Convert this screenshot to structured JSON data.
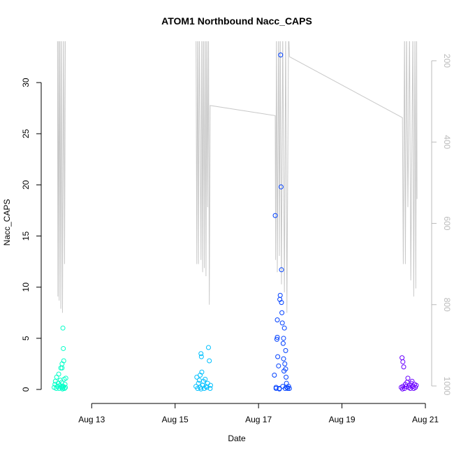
{
  "chart_data": {
    "type": "scatter",
    "title": "ATOM1 Northbound Nacc_CAPS",
    "x_label": "Date",
    "y_label": "Nacc_CAPS",
    "xlim": [
      11.79,
      21.15
    ],
    "xticks": [
      {
        "value": 13,
        "label": "Aug 13"
      },
      {
        "value": 15,
        "label": "Aug 15"
      },
      {
        "value": 17,
        "label": "Aug 17"
      },
      {
        "value": 19,
        "label": "Aug 19"
      },
      {
        "value": 21,
        "label": "Aug 21"
      }
    ],
    "ylim": [
      -1.37,
      34.04
    ],
    "yticks": [
      0,
      5,
      10,
      15,
      20,
      25,
      30
    ],
    "y2lim": [
      1043,
      152
    ],
    "y2ticks": [
      200,
      400,
      600,
      800,
      1000
    ],
    "series": [
      {
        "color": "#00ffc8",
        "x": [
          12.1,
          12.12,
          12.13,
          12.15,
          12.16,
          12.18,
          12.2,
          12.21,
          12.22,
          12.24,
          12.25,
          12.26,
          12.27,
          12.28,
          12.29,
          12.3,
          12.31,
          12.32,
          12.33,
          12.34,
          12.35,
          12.36,
          12.37,
          12.38,
          12.3,
          12.31,
          12.29,
          12.32
        ],
        "values": [
          0.2,
          0.5,
          0.8,
          0.1,
          1.2,
          0.3,
          0.6,
          1.5,
          0.1,
          0.4,
          0.9,
          2.1,
          0.2,
          0.7,
          2.5,
          0.3,
          6.0,
          4.0,
          2.8,
          1.0,
          0.1,
          0.5,
          0.2,
          1.1,
          0.05,
          0.15,
          2.1,
          0.3
        ]
      },
      {
        "color": "#00c0ff",
        "x": [
          15.5,
          15.52,
          15.54,
          15.56,
          15.58,
          15.6,
          15.62,
          15.63,
          15.64,
          15.66,
          15.68,
          15.7,
          15.72,
          15.74,
          15.76,
          15.78,
          15.8,
          15.82,
          15.84,
          15.85,
          15.62,
          15.6
        ],
        "values": [
          0.3,
          1.2,
          0.1,
          0.6,
          0.9,
          0.2,
          3.5,
          3.2,
          1.7,
          0.4,
          0.8,
          0.1,
          1.0,
          0.3,
          0.2,
          0.6,
          4.1,
          2.8,
          0.1,
          0.4,
          0.05,
          1.4
        ]
      },
      {
        "color": "#0040ff",
        "x": [
          17.38,
          17.4,
          17.42,
          17.44,
          17.45,
          17.46,
          17.48,
          17.5,
          17.51,
          17.52,
          17.53,
          17.54,
          17.55,
          17.56,
          17.57,
          17.58,
          17.59,
          17.6,
          17.61,
          17.62,
          17.63,
          17.64,
          17.65,
          17.66,
          17.67,
          17.68,
          17.7,
          17.72,
          17.74,
          17.5,
          17.55,
          17.45,
          17.6,
          17.65,
          17.42
        ],
        "values": [
          1.4,
          17.0,
          0.2,
          4.9,
          5.1,
          3.2,
          2.3,
          0.1,
          8.8,
          9.2,
          32.7,
          19.8,
          11.7,
          7.5,
          6.5,
          0.3,
          4.5,
          3.0,
          1.8,
          6.0,
          2.5,
          0.1,
          3.8,
          1.2,
          0.6,
          0.2,
          0.1,
          0.3,
          0.1,
          0.05,
          8.5,
          6.8,
          5.0,
          2.0,
          0.1
        ]
      },
      {
        "color": "#6a00ff",
        "x": [
          20.42,
          20.44,
          20.46,
          20.48,
          20.5,
          20.52,
          20.54,
          20.56,
          20.58,
          20.6,
          20.62,
          20.64,
          20.66,
          20.68,
          20.7,
          20.72,
          20.74,
          20.76,
          20.78,
          20.45,
          20.46
        ],
        "values": [
          0.2,
          3.1,
          2.7,
          2.2,
          0.1,
          0.5,
          0.3,
          0.7,
          1.1,
          0.2,
          0.4,
          0.1,
          0.6,
          0.8,
          0.3,
          0.1,
          0.5,
          0.2,
          0.4,
          0.05,
          0.3
        ]
      },
      {
        "type": "line",
        "axis": "y2",
        "color": "#c8c8c8",
        "x": [
          12.18,
          12.19,
          12.21,
          12.22,
          12.24,
          12.26,
          12.28,
          12.3,
          12.33,
          12.35,
          12.37,
          15.5,
          15.52,
          15.54,
          15.56,
          15.58,
          15.62,
          15.64,
          15.66,
          15.68,
          15.7,
          15.72,
          15.74,
          15.76,
          15.78,
          15.8,
          15.82,
          15.84,
          17.4,
          17.41,
          17.43,
          17.45,
          17.48,
          17.5,
          17.52,
          17.55,
          17.58,
          17.62,
          17.65,
          17.68,
          17.72,
          17.74,
          20.45,
          20.47,
          20.5,
          20.52,
          20.55,
          20.58,
          20.62,
          20.65,
          20.7,
          20.72,
          20.75,
          20.77,
          20.79,
          20.8
        ],
        "values": [
          100,
          780,
          100,
          790,
          100,
          810,
          100,
          820,
          100,
          700,
          100,
          100,
          700,
          100,
          700,
          100,
          690,
          100,
          720,
          100,
          710,
          100,
          730,
          100,
          560,
          100,
          800,
          310,
          335,
          690,
          120,
          720,
          120,
          680,
          120,
          750,
          120,
          770,
          120,
          820,
          120,
          190,
          340,
          700,
          120,
          700,
          120,
          560,
          120,
          740,
          120,
          780,
          120,
          760,
          120,
          540
        ]
      }
    ]
  }
}
